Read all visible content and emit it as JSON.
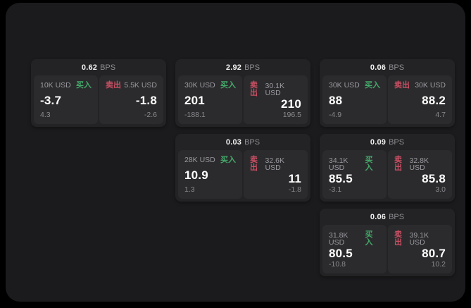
{
  "labels": {
    "buy": "买入",
    "sell": "卖出",
    "bps_suffix": "BPS"
  },
  "colors": {
    "page_bg": "#000000",
    "panel_bg": "#1b1b1d",
    "card_bg": "#232325",
    "subpanel_bg": "#2b2b2d",
    "text_primary": "#f2f2f2",
    "text_secondary": "#8e8e93",
    "buy_green": "#45a86a",
    "sell_red": "#c84f63"
  },
  "cards": [
    {
      "bps": "0.62",
      "buy": {
        "amount": "10K USD",
        "price": "-3.7",
        "change": "4.3"
      },
      "sell": {
        "amount": "5.5K USD",
        "price": "-1.8",
        "change": "-2.6"
      }
    },
    {
      "bps": "2.92",
      "buy": {
        "amount": "30K USD",
        "price": "201",
        "change": "-188.1"
      },
      "sell": {
        "amount": "30.1K USD",
        "price": "210",
        "change": "196.5"
      }
    },
    {
      "bps": "0.06",
      "buy": {
        "amount": "30K USD",
        "price": "88",
        "change": "-4.9"
      },
      "sell": {
        "amount": "30K USD",
        "price": "88.2",
        "change": "4.7"
      }
    },
    {
      "bps": "0.03",
      "buy": {
        "amount": "28K USD",
        "price": "10.9",
        "change": "1.3"
      },
      "sell": {
        "amount": "32.6K USD",
        "price": "11",
        "change": "-1.8"
      }
    },
    {
      "bps": "0.09",
      "buy": {
        "amount": "34.1K USD",
        "price": "85.5",
        "change": "-3.1"
      },
      "sell": {
        "amount": "32.8K USD",
        "price": "85.8",
        "change": "3.0"
      }
    },
    {
      "bps": "0.06",
      "buy": {
        "amount": "31.8K USD",
        "price": "80.5",
        "change": "-10.8"
      },
      "sell": {
        "amount": "39.1K USD",
        "price": "80.7",
        "change": "10.2"
      }
    }
  ]
}
